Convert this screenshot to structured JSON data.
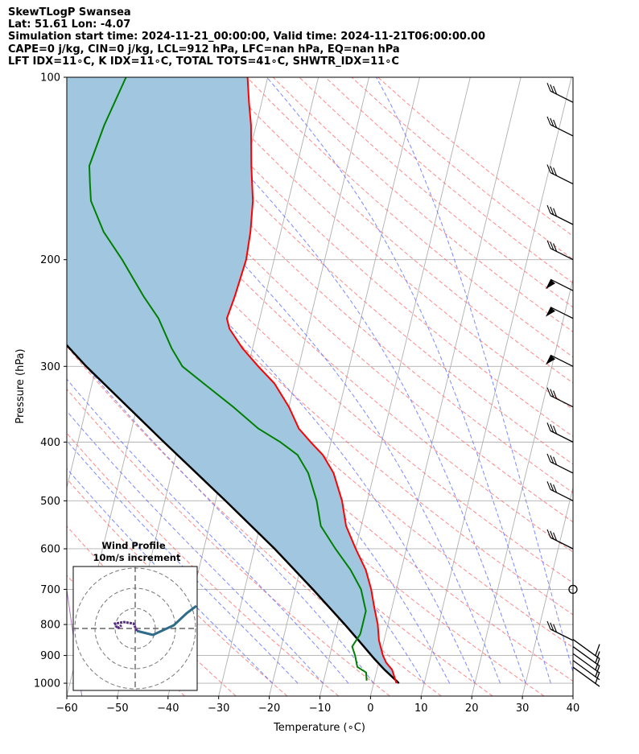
{
  "header": {
    "line1": "SkewTLogP Swansea",
    "line2": "Lat: 51.61   Lon: -4.07",
    "line3": "Simulation start time: 2024-11-21_00:00:00, Valid time: 2024-11-21T06:00:00.00",
    "line4": "CAPE=0 j/kg, CIN=0 j/kg, LCL=912 hPa, LFC=nan hPa, EQ=nan hPa",
    "line5": "LFT IDX=11∘C, K IDX=11∘C, TOTAL TOTS=41∘C, SHWTR_IDX=11∘C"
  },
  "colors": {
    "temperature": "#ff0000",
    "dewpoint": "#008000",
    "parcel": "#000000",
    "shade": "#a1c6e0",
    "dry_adiabat": "#ff6060",
    "moist_adiabat": "#5b6bff",
    "isotherm": "#b0b0b0",
    "mixing_ratio_purple": "#9b4fc0",
    "hodo_upper": "#5a2a8a",
    "hodo_lower": "#2f6c8a"
  },
  "chart_data": {
    "type": "line",
    "subtype": "skew-T log-P",
    "xlabel": "Temperature (∘C)",
    "ylabel": "Pressure (hPa)",
    "xlim": [
      -60,
      40
    ],
    "ylim": [
      1050,
      100
    ],
    "y_scale": "log",
    "x_ticks": [
      "−60",
      "−50",
      "−40",
      "−30",
      "−20",
      "−10",
      "0",
      "10",
      "20",
      "30",
      "40"
    ],
    "y_ticks": [
      "100",
      "200",
      "300",
      "400",
      "500",
      "600",
      "700",
      "800",
      "900",
      "1000"
    ],
    "grid": true,
    "series": [
      {
        "key": "temperature",
        "points": [
          [
            1000,
            4.5
          ],
          [
            950,
            3
          ],
          [
            925,
            1.5
          ],
          [
            900,
            0.5
          ],
          [
            850,
            -1
          ],
          [
            800,
            -2
          ],
          [
            750,
            -3.5
          ],
          [
            700,
            -5
          ],
          [
            650,
            -7
          ],
          [
            600,
            -10
          ],
          [
            550,
            -13
          ],
          [
            500,
            -15
          ],
          [
            450,
            -18
          ],
          [
            420,
            -21
          ],
          [
            400,
            -24
          ],
          [
            380,
            -27
          ],
          [
            350,
            -30
          ],
          [
            320,
            -34
          ],
          [
            300,
            -38
          ],
          [
            280,
            -42
          ],
          [
            260,
            -45.5
          ],
          [
            250,
            -46.5
          ],
          [
            230,
            -46
          ],
          [
            200,
            -45.5
          ],
          [
            180,
            -46
          ],
          [
            160,
            -47
          ],
          [
            140,
            -49
          ],
          [
            120,
            -51
          ],
          [
            110,
            -52.5
          ],
          [
            100,
            -54
          ]
        ]
      },
      {
        "key": "dewpoint",
        "points": [
          [
            990,
            -1.5
          ],
          [
            960,
            -2
          ],
          [
            940,
            -4
          ],
          [
            900,
            -5
          ],
          [
            870,
            -6
          ],
          [
            830,
            -5
          ],
          [
            800,
            -5
          ],
          [
            760,
            -5
          ],
          [
            700,
            -7
          ],
          [
            650,
            -10
          ],
          [
            600,
            -14
          ],
          [
            550,
            -18
          ],
          [
            500,
            -20
          ],
          [
            450,
            -23
          ],
          [
            420,
            -26
          ],
          [
            400,
            -30
          ],
          [
            380,
            -35
          ],
          [
            350,
            -41
          ],
          [
            320,
            -48
          ],
          [
            300,
            -53
          ],
          [
            280,
            -56
          ],
          [
            250,
            -60
          ],
          [
            230,
            -64
          ],
          [
            200,
            -70
          ],
          [
            180,
            -75
          ],
          [
            160,
            -79
          ],
          [
            150,
            -80
          ],
          [
            140,
            -81
          ],
          [
            120,
            -80
          ],
          [
            100,
            -78
          ]
        ]
      },
      {
        "key": "parcel",
        "points": [
          [
            1000,
            5
          ],
          [
            950,
            1.5
          ],
          [
            912,
            -1
          ],
          [
            850,
            -5
          ],
          [
            800,
            -8.5
          ],
          [
            700,
            -16.5
          ],
          [
            600,
            -26
          ],
          [
            500,
            -38
          ],
          [
            400,
            -53
          ],
          [
            300,
            -72
          ],
          [
            250,
            -83
          ],
          [
            200,
            -98
          ],
          [
            150,
            -120
          ],
          [
            100,
            -150
          ]
        ]
      }
    ],
    "wind_barbs_pressure": [
      1000,
      975,
      950,
      925,
      900,
      850,
      700,
      600,
      500,
      450,
      400,
      350,
      300,
      250,
      225,
      200,
      175,
      150,
      125,
      110
    ],
    "hodograph": {
      "title": "Wind Profile",
      "subtitle": "10m/s increment"
    }
  }
}
